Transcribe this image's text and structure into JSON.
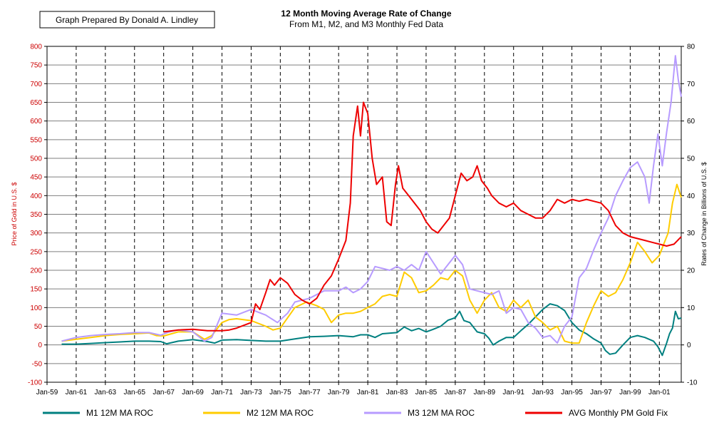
{
  "chart_data": {
    "type": "line",
    "title": "12 Month Moving Average Rate of Change",
    "subtitle": "From M1, M2, and M3 Monthly Fed Data",
    "credit": "Graph Prepared By Donald A. Lindley",
    "ylabel_left": "Price of Gold in U.S. $",
    "ylabel_right": "Rates of Change in Billions of U.S. $",
    "ylim_left": [
      -100,
      800
    ],
    "ylim_right": [
      -10,
      80
    ],
    "xlim": [
      1959.0,
      2002.5
    ],
    "yticks_left": [
      "800",
      "750",
      "700",
      "650",
      "600",
      "550",
      "500",
      "450",
      "400",
      "350",
      "300",
      "250",
      "200",
      "150",
      "100",
      "50",
      "0",
      "-50",
      "-100"
    ],
    "yticks_right": [
      "80",
      "70",
      "60",
      "50",
      "40",
      "30",
      "20",
      "10",
      "0",
      "-10"
    ],
    "xticks": [
      "Jan-59",
      "Jan-61",
      "Jan-63",
      "Jan-65",
      "Jan-67",
      "Jan-69",
      "Jan-71",
      "Jan-73",
      "Jan-75",
      "Jan-77",
      "Jan-79",
      "Jan-81",
      "Jan-83",
      "Jan-85",
      "Jan-87",
      "Jan-89",
      "Jan-91",
      "Jan-93",
      "Jan-95",
      "Jan-97",
      "Jan-99",
      "Jan-01"
    ],
    "grid": true,
    "legend_position": "bottom",
    "series": [
      {
        "name": "M1 12M MA ROC",
        "axis": "right",
        "color": "#008080",
        "x": [
          1960.0,
          1961.0,
          1962.0,
          1963.0,
          1964.0,
          1965.0,
          1966.0,
          1966.8,
          1967.2,
          1968.0,
          1969.0,
          1970.0,
          1970.5,
          1971.0,
          1972.0,
          1973.0,
          1974.0,
          1975.0,
          1976.0,
          1977.0,
          1978.0,
          1979.0,
          1980.0,
          1980.5,
          1981.0,
          1981.5,
          1982.0,
          1983.0,
          1983.5,
          1984.0,
          1984.5,
          1985.0,
          1985.5,
          1986.0,
          1986.5,
          1987.0,
          1987.3,
          1987.6,
          1988.0,
          1988.5,
          1989.0,
          1989.3,
          1989.6,
          1990.0,
          1990.5,
          1991.0,
          1991.5,
          1992.0,
          1992.5,
          1993.0,
          1993.5,
          1994.0,
          1994.5,
          1995.0,
          1995.5,
          1996.0,
          1996.5,
          1997.0,
          1997.3,
          1997.6,
          1998.0,
          1998.5,
          1999.0,
          1999.5,
          2000.0,
          2000.3,
          2000.6,
          2000.9,
          2001.2,
          2001.5,
          2001.7,
          2001.9,
          2002.1,
          2002.3,
          2002.5
        ],
        "values": [
          0.2,
          0.2,
          0.4,
          0.6,
          0.8,
          1.0,
          1.0,
          0.9,
          0.3,
          1.0,
          1.4,
          0.9,
          0.5,
          1.3,
          1.4,
          1.2,
          1.0,
          1.0,
          1.6,
          2.2,
          2.3,
          2.5,
          2.2,
          2.7,
          2.7,
          2.0,
          3.0,
          3.3,
          4.8,
          3.8,
          4.4,
          3.5,
          4.2,
          5.0,
          6.6,
          7.3,
          9.0,
          6.5,
          6.0,
          3.5,
          3.0,
          1.8,
          0.0,
          1.0,
          2.0,
          2.0,
          3.8,
          5.5,
          7.5,
          9.5,
          11.0,
          10.5,
          9.2,
          6.0,
          4.0,
          3.0,
          1.6,
          0.5,
          -1.5,
          -2.5,
          -2.2,
          0.0,
          2.0,
          2.5,
          2.0,
          1.5,
          1.0,
          -0.5,
          -2.8,
          0.5,
          3.0,
          4.5,
          9.0,
          7.0,
          7.2
        ]
      },
      {
        "name": "M2 12M MA ROC",
        "axis": "right",
        "color": "#ffcc00",
        "x": [
          1960.0,
          1961.0,
          1962.0,
          1963.0,
          1964.0,
          1965.0,
          1966.0,
          1966.5,
          1967.0,
          1968.0,
          1969.0,
          1969.8,
          1970.3,
          1971.0,
          1971.5,
          1972.0,
          1973.0,
          1974.0,
          1974.5,
          1975.0,
          1976.0,
          1976.8,
          1977.5,
          1978.0,
          1978.5,
          1979.0,
          1979.5,
          1980.0,
          1980.5,
          1981.0,
          1981.5,
          1982.0,
          1982.5,
          1983.0,
          1983.5,
          1984.0,
          1984.5,
          1985.0,
          1985.5,
          1986.0,
          1986.5,
          1987.0,
          1987.5,
          1988.0,
          1988.5,
          1989.0,
          1989.5,
          1990.0,
          1990.5,
          1991.0,
          1991.5,
          1992.0,
          1992.5,
          1993.0,
          1993.5,
          1994.0,
          1994.5,
          1995.0,
          1995.5,
          1996.0,
          1996.5,
          1997.0,
          1997.5,
          1998.0,
          1998.5,
          1999.0,
          1999.5,
          2000.0,
          2000.5,
          2001.0,
          2001.3,
          2001.6,
          2001.9,
          2002.2,
          2002.5
        ],
        "values": [
          1.0,
          1.5,
          2.0,
          2.5,
          2.8,
          3.0,
          3.2,
          2.5,
          2.4,
          3.5,
          3.5,
          1.5,
          2.5,
          6.0,
          6.8,
          7.0,
          6.5,
          5.0,
          4.0,
          4.5,
          10.0,
          11.5,
          10.5,
          9.5,
          6.0,
          8.0,
          8.5,
          8.5,
          9.0,
          10.0,
          11.0,
          13.0,
          13.5,
          13.0,
          19.5,
          18.0,
          14.0,
          14.5,
          16.0,
          18.0,
          17.5,
          20.0,
          18.5,
          12.0,
          8.5,
          12.0,
          14.0,
          10.0,
          9.0,
          12.0,
          10.0,
          12.0,
          7.5,
          6.0,
          4.0,
          5.0,
          1.0,
          0.5,
          0.5,
          6.0,
          10.5,
          14.5,
          13.0,
          14.0,
          17.5,
          22.0,
          27.5,
          25.0,
          22.0,
          24.0,
          27.0,
          30.0,
          38.0,
          43.0,
          39.5
        ]
      },
      {
        "name": "M3 12M MA ROC",
        "axis": "right",
        "color": "#b79bff",
        "x": [
          1960.0,
          1961.0,
          1962.0,
          1963.0,
          1964.0,
          1965.0,
          1966.0,
          1966.8,
          1967.3,
          1968.0,
          1969.0,
          1969.8,
          1970.3,
          1971.0,
          1972.0,
          1973.0,
          1974.0,
          1974.8,
          1975.5,
          1976.0,
          1977.0,
          1978.0,
          1979.0,
          1979.5,
          1980.0,
          1980.5,
          1981.0,
          1981.5,
          1982.0,
          1982.5,
          1983.0,
          1983.5,
          1984.0,
          1984.5,
          1985.0,
          1985.5,
          1986.0,
          1986.5,
          1987.0,
          1987.5,
          1988.0,
          1988.5,
          1989.0,
          1989.5,
          1990.0,
          1990.5,
          1991.0,
          1991.5,
          1992.0,
          1992.5,
          1993.0,
          1993.5,
          1994.0,
          1994.5,
          1995.0,
          1995.5,
          1996.0,
          1996.5,
          1997.0,
          1997.5,
          1998.0,
          1998.5,
          1999.0,
          1999.5,
          2000.0,
          2000.3,
          2000.6,
          2000.9,
          2001.2,
          2001.5,
          2001.8,
          2002.1,
          2002.3,
          2002.5
        ],
        "values": [
          1.0,
          2.0,
          2.5,
          2.8,
          3.0,
          3.3,
          3.3,
          2.6,
          3.4,
          4.0,
          3.5,
          1.0,
          2.0,
          8.5,
          8.0,
          9.5,
          8.0,
          6.0,
          8.5,
          11.5,
          12.5,
          14.5,
          14.5,
          15.5,
          14.0,
          15.0,
          17.0,
          21.0,
          20.5,
          20.0,
          21.0,
          20.0,
          21.5,
          20.0,
          25.0,
          22.0,
          19.0,
          21.5,
          24.0,
          21.5,
          15.0,
          14.5,
          14.0,
          13.5,
          14.5,
          8.5,
          10.0,
          9.5,
          6.0,
          4.5,
          2.0,
          2.5,
          0.5,
          5.0,
          7.5,
          18.0,
          20.5,
          25.5,
          30.0,
          34.0,
          40.0,
          44.0,
          47.5,
          49.0,
          45.0,
          38.0,
          48.0,
          56.5,
          48.0,
          57.0,
          65.0,
          77.5,
          71.0,
          66.5
        ]
      },
      {
        "name": "AVG Monthly PM Gold Fix",
        "axis": "left",
        "color": "#ee0000",
        "x": [
          1967.0,
          1968.0,
          1969.0,
          1969.5,
          1970.0,
          1971.0,
          1971.5,
          1972.0,
          1973.0,
          1973.3,
          1973.6,
          1974.0,
          1974.3,
          1974.6,
          1975.0,
          1975.5,
          1976.0,
          1976.5,
          1977.0,
          1977.5,
          1978.0,
          1978.5,
          1979.0,
          1979.5,
          1979.8,
          1980.0,
          1980.3,
          1980.5,
          1980.7,
          1981.0,
          1981.3,
          1981.6,
          1982.0,
          1982.3,
          1982.6,
          1982.9,
          1983.1,
          1983.4,
          1983.8,
          1984.2,
          1984.6,
          1985.0,
          1985.4,
          1985.8,
          1986.2,
          1986.6,
          1987.0,
          1987.4,
          1987.8,
          1988.2,
          1988.5,
          1988.8,
          1989.2,
          1989.5,
          1990.0,
          1990.5,
          1991.0,
          1991.5,
          1992.0,
          1992.5,
          1993.0,
          1993.5,
          1994.0,
          1994.5,
          1995.0,
          1995.5,
          1996.0,
          1996.5,
          1997.0,
          1997.5,
          1998.0,
          1998.5,
          1999.0,
          1999.5,
          2000.0,
          2000.5,
          2001.0,
          2001.5,
          2002.0,
          2002.5
        ],
        "values": [
          35,
          40,
          42,
          40,
          38,
          38,
          40,
          45,
          60,
          110,
          95,
          140,
          175,
          160,
          180,
          165,
          135,
          120,
          110,
          125,
          160,
          185,
          230,
          280,
          380,
          560,
          640,
          560,
          650,
          620,
          500,
          430,
          450,
          330,
          320,
          430,
          480,
          420,
          400,
          380,
          360,
          330,
          310,
          300,
          320,
          340,
          400,
          460,
          440,
          450,
          480,
          440,
          420,
          400,
          380,
          370,
          380,
          360,
          350,
          340,
          340,
          360,
          390,
          380,
          390,
          385,
          390,
          385,
          380,
          360,
          320,
          300,
          290,
          285,
          280,
          275,
          270,
          265,
          270,
          290
        ]
      }
    ]
  }
}
